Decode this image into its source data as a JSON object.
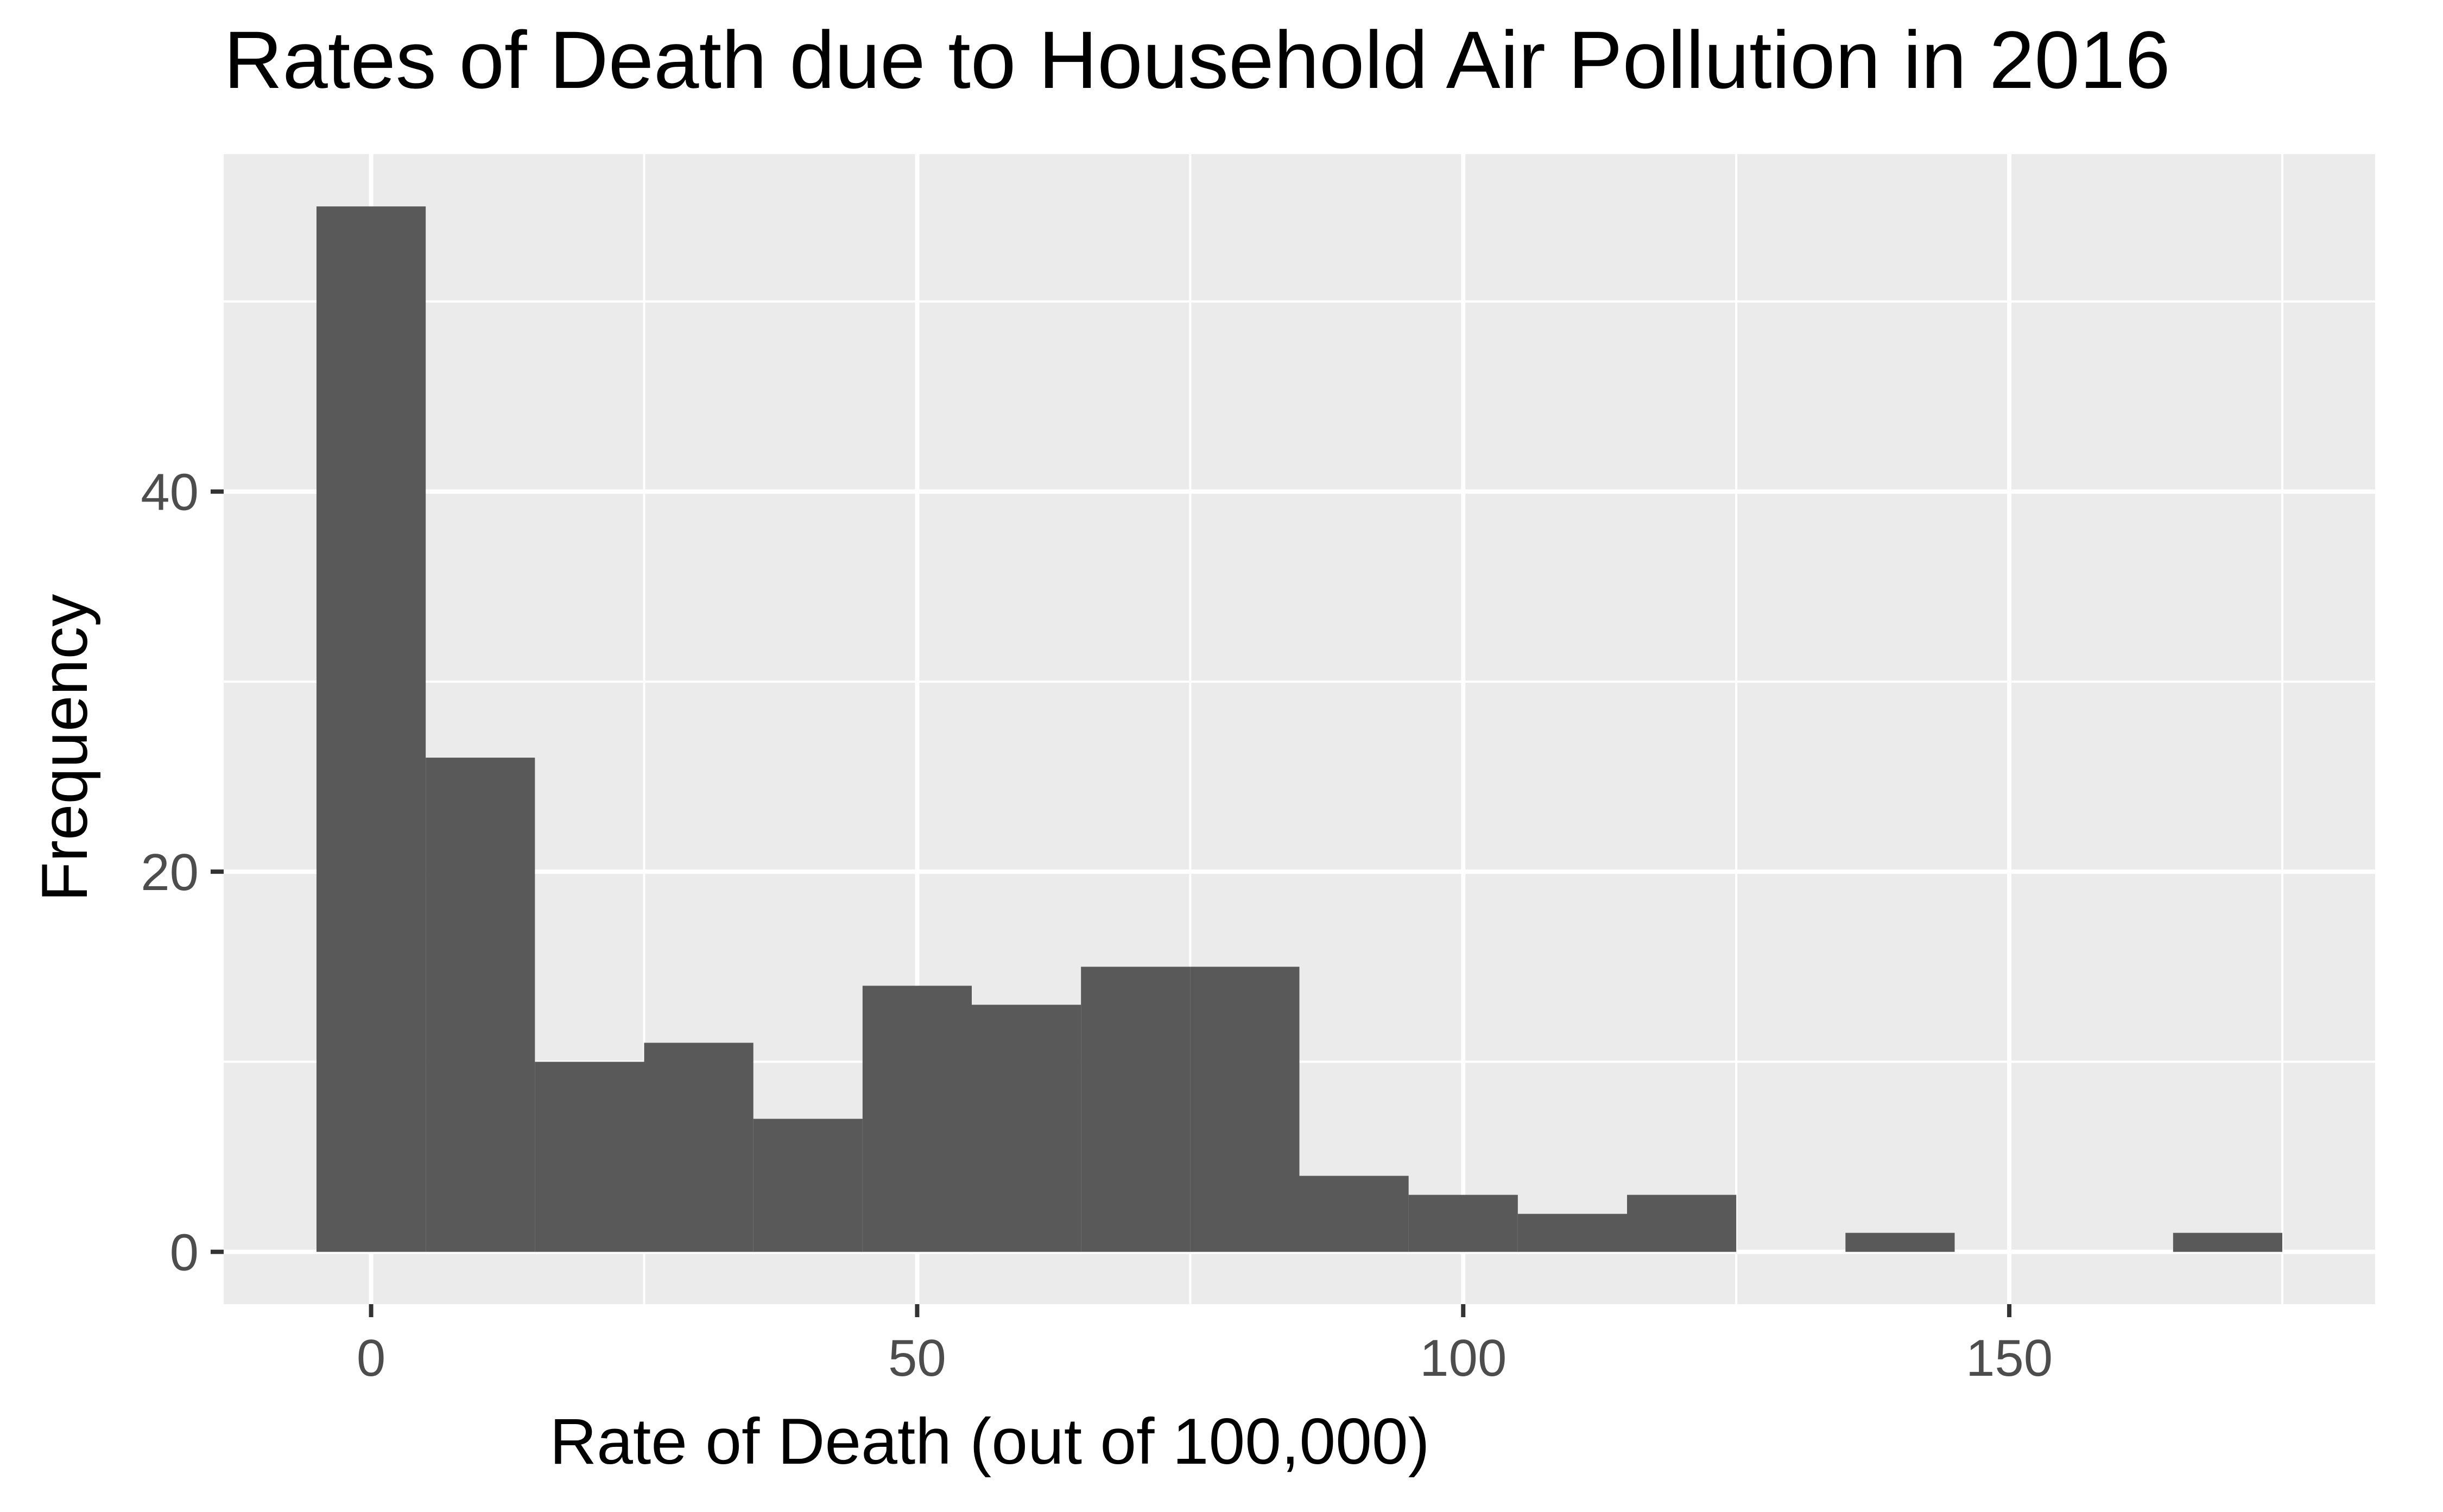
{
  "chart_data": {
    "type": "bar",
    "title": "Rates of Death due to Household Air Pollution in 2016",
    "xlabel": "Rate of Death (out of 100,000)",
    "ylabel": "Frequency",
    "bin_width": 10,
    "bins": [
      {
        "x0": -5,
        "x1": 5,
        "count": 55
      },
      {
        "x0": 5,
        "x1": 15,
        "count": 26
      },
      {
        "x0": 15,
        "x1": 25,
        "count": 10
      },
      {
        "x0": 25,
        "x1": 35,
        "count": 11
      },
      {
        "x0": 35,
        "x1": 45,
        "count": 7
      },
      {
        "x0": 45,
        "x1": 55,
        "count": 14
      },
      {
        "x0": 55,
        "x1": 65,
        "count": 13
      },
      {
        "x0": 65,
        "x1": 75,
        "count": 15
      },
      {
        "x0": 75,
        "x1": 85,
        "count": 15
      },
      {
        "x0": 85,
        "x1": 95,
        "count": 4
      },
      {
        "x0": 95,
        "x1": 105,
        "count": 3
      },
      {
        "x0": 105,
        "x1": 115,
        "count": 2
      },
      {
        "x0": 115,
        "x1": 125,
        "count": 3
      },
      {
        "x0": 125,
        "x1": 135,
        "count": 0
      },
      {
        "x0": 135,
        "x1": 145,
        "count": 1
      },
      {
        "x0": 145,
        "x1": 155,
        "count": 0
      },
      {
        "x0": 155,
        "x1": 165,
        "count": 0
      },
      {
        "x0": 165,
        "x1": 175,
        "count": 1
      }
    ],
    "xlim": [
      -13.5,
      183.5
    ],
    "ylim": [
      -2.75,
      57.75
    ],
    "x_ticks": [
      0,
      50,
      100,
      150
    ],
    "x_tick_labels": [
      "0",
      "50",
      "100",
      "150"
    ],
    "x_minor_breaks": [
      25,
      75,
      125,
      175
    ],
    "y_ticks": [
      0,
      20,
      40
    ],
    "y_tick_labels": [
      "0",
      "20",
      "40"
    ],
    "y_minor_breaks": [
      10,
      30,
      50
    ],
    "grid": true,
    "legend": "none",
    "colors": {
      "bar_fill": "#595959",
      "panel_background": "#EBEBEB",
      "grid": "#FFFFFF",
      "tick_text": "#4D4D4D",
      "title_text": "#000000"
    }
  }
}
